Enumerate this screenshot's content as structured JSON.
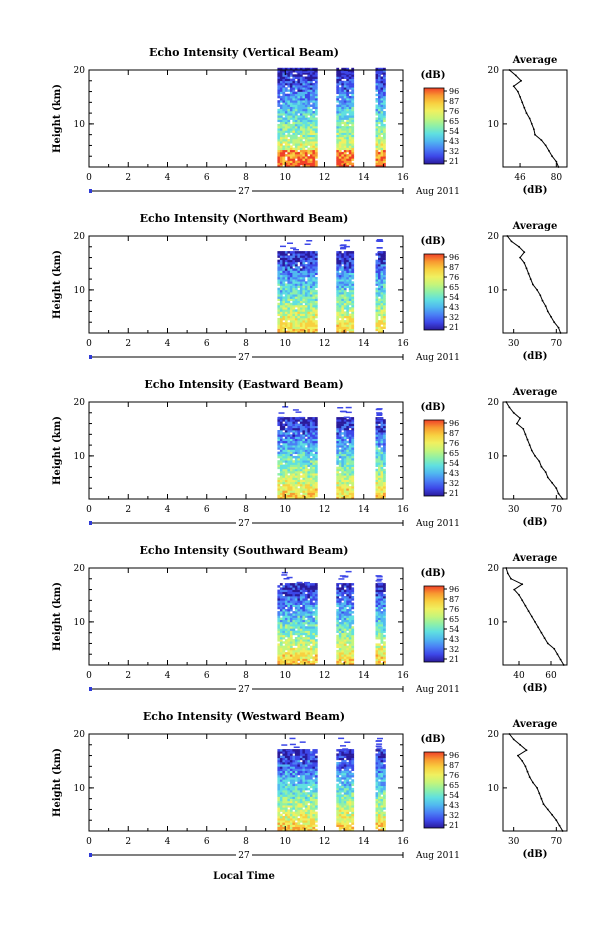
{
  "colors": {
    "axis": "#000000",
    "colormap": [
      "#2a1a9a",
      "#3d47e8",
      "#4a7ff5",
      "#50b8f0",
      "#60e0e0",
      "#8ef0a8",
      "#c6f57a",
      "#f0f060",
      "#f8d040",
      "#f89a30",
      "#f04028"
    ],
    "profile_line": "#000000"
  },
  "figure": {
    "xlabel": "Local Time",
    "date_label": "Aug 2011",
    "day_label": "27"
  },
  "colorbar": {
    "unit": "(dB)",
    "tick_labels": [
      "96",
      "87",
      "76",
      "65",
      "54",
      "43",
      "32",
      "21"
    ]
  },
  "chart_data": [
    {
      "type": "heatmap",
      "title": "Echo Intensity (Vertical Beam)",
      "ylabel": "Height (km)",
      "xlim": [
        0,
        16
      ],
      "ylim": [
        2,
        20
      ],
      "x_ticks": [
        "0",
        "2",
        "4",
        "6",
        "8",
        "10",
        "12",
        "14",
        "16"
      ],
      "y_ticks": [
        "20",
        "10"
      ],
      "data_time_blocks": [
        [
          9.6,
          11.6
        ],
        [
          12.6,
          13.4
        ],
        [
          14.6,
          15.0
        ]
      ],
      "echo_top_km": 20.0,
      "profile": {
        "title": "Average",
        "xlabel": "(dB)",
        "x_ticks": [
          "46",
          "80"
        ],
        "xlim": [
          30,
          90
        ],
        "y_ticks": [
          "20",
          "10"
        ],
        "heights_km": [
          2,
          3,
          4,
          5,
          6,
          7,
          8,
          9,
          10,
          11,
          12,
          13,
          14,
          15,
          16,
          17,
          18,
          19,
          20
        ],
        "values_db": [
          82,
          80,
          76,
          73,
          70,
          66,
          60,
          59,
          57,
          55,
          52,
          50,
          48,
          46,
          44,
          40,
          47,
          42,
          36
        ]
      }
    },
    {
      "type": "heatmap",
      "title": "Echo Intensity (Northward Beam)",
      "ylabel": "Height (km)",
      "xlim": [
        0,
        16
      ],
      "ylim": [
        2,
        20
      ],
      "x_ticks": [
        "0",
        "2",
        "4",
        "6",
        "8",
        "10",
        "12",
        "14",
        "16"
      ],
      "y_ticks": [
        "20",
        "10"
      ],
      "data_time_blocks": [
        [
          9.6,
          11.6
        ],
        [
          12.6,
          13.4
        ],
        [
          14.6,
          15.0
        ]
      ],
      "echo_top_km": 17.0,
      "profile": {
        "title": "Average",
        "xlabel": "(dB)",
        "x_ticks": [
          "30",
          "70"
        ],
        "xlim": [
          20,
          80
        ],
        "y_ticks": [
          "20",
          "10"
        ],
        "heights_km": [
          2,
          3,
          4,
          5,
          6,
          7,
          8,
          9,
          10,
          11,
          12,
          13,
          14,
          15,
          16,
          17,
          18,
          19,
          20
        ],
        "values_db": [
          74,
          72,
          68,
          65,
          62,
          60,
          57,
          55,
          52,
          48,
          46,
          44,
          42,
          40,
          36,
          40,
          35,
          28,
          24
        ]
      }
    },
    {
      "type": "heatmap",
      "title": "Echo Intensity (Eastward Beam)",
      "ylabel": "Height (km)",
      "xlim": [
        0,
        16
      ],
      "ylim": [
        2,
        20
      ],
      "x_ticks": [
        "0",
        "2",
        "4",
        "6",
        "8",
        "10",
        "12",
        "14",
        "16"
      ],
      "y_ticks": [
        "20",
        "10"
      ],
      "data_time_blocks": [
        [
          9.6,
          11.6
        ],
        [
          12.6,
          13.4
        ],
        [
          14.6,
          15.0
        ]
      ],
      "echo_top_km": 17.0,
      "profile": {
        "title": "Average",
        "xlabel": "(dB)",
        "x_ticks": [
          "30",
          "70"
        ],
        "xlim": [
          20,
          80
        ],
        "y_ticks": [
          "20",
          "10"
        ],
        "heights_km": [
          2,
          3,
          4,
          5,
          6,
          7,
          8,
          9,
          10,
          11,
          12,
          13,
          14,
          15,
          16,
          17,
          18,
          19,
          20
        ],
        "values_db": [
          76,
          72,
          70,
          66,
          62,
          60,
          56,
          54,
          50,
          47,
          45,
          43,
          41,
          39,
          33,
          36,
          30,
          26,
          23
        ]
      }
    },
    {
      "type": "heatmap",
      "title": "Echo Intensity (Southward Beam)",
      "ylabel": "Height (km)",
      "xlim": [
        0,
        16
      ],
      "ylim": [
        2,
        20
      ],
      "x_ticks": [
        "0",
        "2",
        "4",
        "6",
        "8",
        "10",
        "12",
        "14",
        "16"
      ],
      "y_ticks": [
        "20",
        "10"
      ],
      "data_time_blocks": [
        [
          9.6,
          11.6
        ],
        [
          12.6,
          13.4
        ],
        [
          14.6,
          15.0
        ]
      ],
      "echo_top_km": 17.0,
      "profile": {
        "title": "Average",
        "xlabel": "(dB)",
        "x_ticks": [
          "40",
          "60"
        ],
        "xlim": [
          30,
          70
        ],
        "y_ticks": [
          "20",
          "10"
        ],
        "heights_km": [
          2,
          3,
          4,
          5,
          6,
          7,
          8,
          9,
          10,
          11,
          12,
          13,
          14,
          15,
          16,
          17,
          18,
          19,
          20
        ],
        "values_db": [
          68,
          66,
          64,
          62,
          58,
          56,
          54,
          52,
          50,
          48,
          46,
          44,
          42,
          40,
          37,
          42,
          35,
          33,
          32
        ]
      }
    },
    {
      "type": "heatmap",
      "title": "Echo Intensity (Westward Beam)",
      "ylabel": "Height (km)",
      "xlim": [
        0,
        16
      ],
      "ylim": [
        2,
        20
      ],
      "x_ticks": [
        "0",
        "2",
        "4",
        "6",
        "8",
        "10",
        "12",
        "14",
        "16"
      ],
      "y_ticks": [
        "20",
        "10"
      ],
      "data_time_blocks": [
        [
          9.6,
          11.6
        ],
        [
          12.6,
          13.4
        ],
        [
          14.6,
          15.0
        ]
      ],
      "echo_top_km": 17.0,
      "profile": {
        "title": "Average",
        "xlabel": "(dB)",
        "x_ticks": [
          "30",
          "70"
        ],
        "xlim": [
          20,
          80
        ],
        "y_ticks": [
          "20",
          "10"
        ],
        "heights_km": [
          2,
          3,
          4,
          5,
          6,
          7,
          8,
          9,
          10,
          11,
          12,
          13,
          14,
          15,
          16,
          17,
          18,
          19,
          20
        ],
        "values_db": [
          76,
          73,
          70,
          66,
          62,
          58,
          56,
          54,
          52,
          48,
          45,
          43,
          41,
          38,
          34,
          42,
          36,
          30,
          26
        ]
      }
    }
  ]
}
